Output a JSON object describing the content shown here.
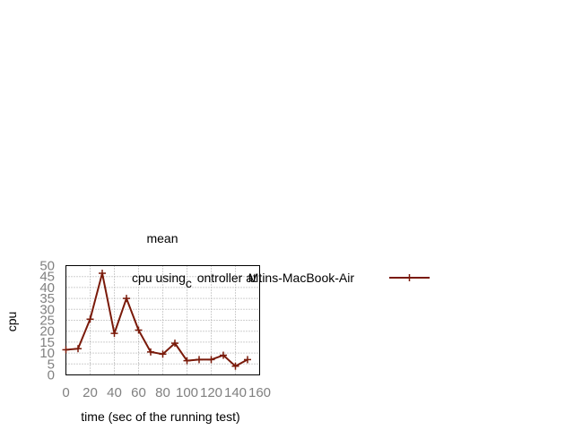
{
  "chart_data": {
    "type": "line",
    "title": "mean",
    "xlabel": "time (sec of the running test)",
    "ylabel": "cpu",
    "xlim": [
      0,
      160
    ],
    "ylim": [
      0,
      50
    ],
    "x_ticks": [
      "0",
      "20",
      "40",
      "60",
      "80",
      "100",
      "120",
      "140",
      "160"
    ],
    "y_ticks": [
      "0",
      "5",
      "10",
      "15",
      "20",
      "25",
      "30",
      "35",
      "40",
      "45",
      "50"
    ],
    "grid": true,
    "legend_position": "top-right",
    "legend_text_parts": [
      {
        "text": "cpu using",
        "sub": false
      },
      {
        "text": "c",
        "sub": true
      },
      {
        "text": "ontroller at",
        "sub": false
      },
      {
        "text": "Mtins-MacBook-Air",
        "sub": false
      }
    ],
    "series": [
      {
        "color": "#7a1a0a",
        "x": [
          0,
          10,
          20,
          30,
          40,
          50,
          60,
          70,
          80,
          90,
          100,
          110,
          120,
          130,
          140,
          150
        ],
        "y": [
          11.5,
          12,
          25.5,
          46.5,
          19,
          35,
          20.5,
          10.5,
          9.5,
          14.5,
          6.5,
          7,
          7,
          9,
          4,
          7
        ]
      }
    ]
  }
}
